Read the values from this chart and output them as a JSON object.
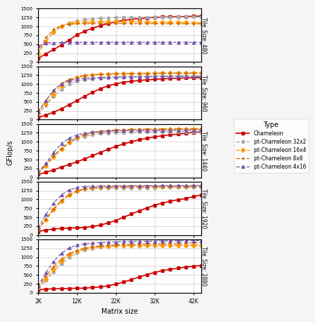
{
  "x_values": [
    2000,
    4000,
    6000,
    8000,
    10000,
    12000,
    14000,
    16000,
    18000,
    20000,
    22000,
    24000,
    26000,
    28000,
    30000,
    32000,
    34000,
    36000,
    38000,
    40000,
    42000,
    44000
  ],
  "x_ticks": [
    2000,
    12000,
    22000,
    32000,
    42000
  ],
  "x_tick_labels": [
    "2K",
    "12K",
    "22K",
    "32K",
    "42K"
  ],
  "ylim": [
    0,
    1500
  ],
  "y_ticks": [
    0,
    250,
    500,
    750,
    1000,
    1250,
    1500
  ],
  "tile_sizes": [
    "480",
    "960",
    "1440",
    "1920",
    "2880"
  ],
  "series": {
    "Chameleon": {
      "color": "#cc0000",
      "linestyle": "-",
      "marker": "s",
      "dashes": [],
      "data": {
        "480": [
          100,
          230,
          350,
          480,
          620,
          760,
          870,
          950,
          1020,
          1080,
          1130,
          1170,
          1200,
          1220,
          1240,
          1255,
          1265,
          1270,
          1275,
          1280,
          1285,
          1290
        ],
        "960": [
          60,
          130,
          210,
          310,
          420,
          540,
          660,
          770,
          870,
          950,
          1010,
          1050,
          1080,
          1100,
          1120,
          1135,
          1148,
          1158,
          1165,
          1172,
          1178,
          1184
        ],
        "1440": [
          80,
          140,
          210,
          290,
          360,
          440,
          520,
          610,
          700,
          790,
          870,
          940,
          1000,
          1055,
          1100,
          1140,
          1170,
          1195,
          1215,
          1240,
          1265,
          1280
        ],
        "1920": [
          100,
          140,
          170,
          185,
          195,
          205,
          215,
          240,
          280,
          340,
          410,
          500,
          590,
          680,
          760,
          840,
          900,
          950,
          990,
          1030,
          1080,
          1130
        ],
        "2880": [
          80,
          100,
          110,
          115,
          120,
          125,
          130,
          145,
          165,
          195,
          240,
          300,
          370,
          440,
          510,
          570,
          620,
          660,
          690,
          720,
          745,
          765
        ]
      }
    },
    "pt-Chameleon 32x2": {
      "color": "#aaaaaa",
      "linestyle": "--",
      "marker": "o",
      "dashes": [
        5,
        3
      ],
      "data": {
        "480": [
          230,
          580,
          830,
          1000,
          1100,
          1160,
          1190,
          1210,
          1230,
          1240,
          1248,
          1252,
          1255,
          1258,
          1260,
          1262,
          1263,
          1264,
          1265,
          1265,
          1266,
          1266
        ],
        "960": [
          150,
          400,
          650,
          850,
          1000,
          1080,
          1120,
          1148,
          1165,
          1175,
          1185,
          1193,
          1198,
          1203,
          1207,
          1210,
          1213,
          1215,
          1217,
          1218,
          1220,
          1221
        ],
        "1440": [
          120,
          330,
          570,
          790,
          960,
          1080,
          1150,
          1200,
          1230,
          1248,
          1260,
          1268,
          1272,
          1276,
          1279,
          1281,
          1283,
          1284,
          1285,
          1286,
          1287,
          1288
        ],
        "1920": [
          170,
          430,
          720,
          960,
          1130,
          1230,
          1280,
          1300,
          1310,
          1316,
          1320,
          1323,
          1325,
          1327,
          1328,
          1329,
          1330,
          1331,
          1332,
          1333,
          1334,
          1335
        ],
        "2880": [
          130,
          340,
          590,
          810,
          990,
          1120,
          1200,
          1250,
          1280,
          1300,
          1312,
          1320,
          1326,
          1330,
          1333,
          1335,
          1337,
          1339,
          1340,
          1341,
          1342,
          1342
        ]
      }
    },
    "pt-Chameleon 16x4": {
      "color": "#ff9900",
      "linestyle": "--",
      "marker": "D",
      "dashes": [
        5,
        3
      ],
      "data": {
        "480": [
          230,
          580,
          850,
          1010,
          1080,
          1110,
          1120,
          1128,
          1130,
          1130,
          1130,
          1130,
          1130,
          1128,
          1126,
          1124,
          1122,
          1118,
          1115,
          1112,
          1108,
          1105
        ],
        "960": [
          160,
          430,
          720,
          950,
          1100,
          1180,
          1230,
          1260,
          1275,
          1285,
          1292,
          1297,
          1300,
          1303,
          1305,
          1307,
          1308,
          1309,
          1310,
          1311,
          1312,
          1313
        ],
        "1440": [
          120,
          330,
          570,
          800,
          990,
          1120,
          1200,
          1250,
          1280,
          1300,
          1315,
          1325,
          1332,
          1337,
          1341,
          1344,
          1346,
          1348,
          1349,
          1350,
          1351,
          1352
        ],
        "1920": [
          160,
          420,
          710,
          950,
          1120,
          1240,
          1300,
          1330,
          1345,
          1352,
          1357,
          1360,
          1362,
          1364,
          1365,
          1366,
          1367,
          1367,
          1368,
          1368,
          1369,
          1369
        ],
        "2880": [
          150,
          390,
          650,
          890,
          1060,
          1170,
          1240,
          1280,
          1300,
          1310,
          1315,
          1318,
          1322,
          1324,
          1325,
          1326,
          1327,
          1328,
          1328,
          1329,
          1329,
          1329
        ]
      }
    },
    "pt-Chameleon 8x8": {
      "color": "#cc6600",
      "linestyle": "--",
      "marker": "+",
      "dashes": [
        5,
        3
      ],
      "data": {
        "480": [
          280,
          680,
          920,
          1020,
          1060,
          1075,
          1080,
          1082,
          1083,
          1083,
          1082,
          1081,
          1080,
          1079,
          1078,
          1077,
          1076,
          1075,
          1074,
          1073,
          1072,
          1071
        ],
        "960": [
          200,
          540,
          820,
          1020,
          1130,
          1200,
          1240,
          1265,
          1278,
          1287,
          1293,
          1297,
          1300,
          1302,
          1304,
          1305,
          1306,
          1307,
          1308,
          1308,
          1309,
          1309
        ],
        "1440": [
          130,
          360,
          600,
          820,
          1000,
          1120,
          1200,
          1255,
          1290,
          1315,
          1330,
          1340,
          1347,
          1352,
          1356,
          1359,
          1361,
          1363,
          1364,
          1365,
          1366,
          1367
        ],
        "1920": [
          170,
          450,
          740,
          970,
          1130,
          1240,
          1300,
          1335,
          1350,
          1358,
          1363,
          1366,
          1368,
          1370,
          1371,
          1372,
          1373,
          1374,
          1374,
          1375,
          1375,
          1376
        ],
        "2880": [
          180,
          470,
          740,
          950,
          1100,
          1190,
          1250,
          1290,
          1315,
          1333,
          1347,
          1355,
          1362,
          1367,
          1372,
          1376,
          1380,
          1384,
          1388,
          1393,
          1400,
          1410
        ]
      }
    },
    "pt-Chameleon 4x16": {
      "color": "#7755aa",
      "linestyle": "--",
      "marker": "^",
      "dashes": [
        5,
        3
      ],
      "data": {
        "480": [
          450,
          530,
          540,
          545,
          548,
          550,
          552,
          553,
          554,
          554,
          554,
          554,
          554,
          554,
          554,
          554,
          554,
          554,
          554,
          554,
          554,
          554
        ],
        "960": [
          230,
          540,
          820,
          1010,
          1100,
          1140,
          1165,
          1178,
          1187,
          1193,
          1198,
          1202,
          1205,
          1207,
          1209,
          1210,
          1211,
          1212,
          1213,
          1213,
          1214,
          1214
        ],
        "1440": [
          130,
          400,
          700,
          950,
          1100,
          1190,
          1240,
          1270,
          1288,
          1300,
          1308,
          1313,
          1317,
          1320,
          1322,
          1323,
          1324,
          1325,
          1326,
          1327,
          1327,
          1328
        ],
        "1920": [
          200,
          570,
          900,
          1130,
          1270,
          1340,
          1365,
          1373,
          1378,
          1381,
          1383,
          1385,
          1386,
          1387,
          1387,
          1388,
          1388,
          1389,
          1389,
          1390,
          1390,
          1390
        ],
        "2880": [
          190,
          560,
          880,
          1110,
          1260,
          1340,
          1375,
          1395,
          1408,
          1418,
          1426,
          1432,
          1437,
          1441,
          1445,
          1448,
          1451,
          1454,
          1457,
          1460,
          1463,
          1466
        ]
      }
    }
  },
  "ylabel": "GFlop/s",
  "xlabel": "Matrix size",
  "background_color": "#f5f5f5",
  "panel_bg": "#ffffff",
  "grid_color": "#cccccc"
}
